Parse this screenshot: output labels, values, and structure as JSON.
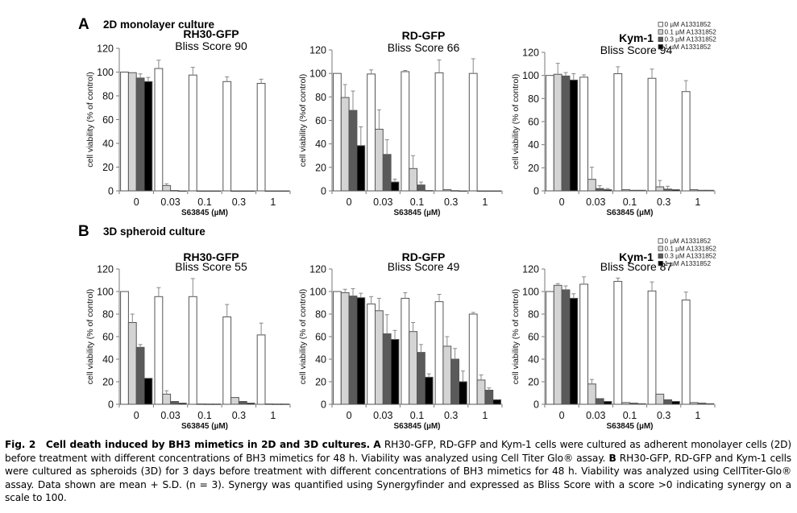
{
  "figure": {
    "panels": [
      {
        "letter": "A",
        "title": "2D monolayer culture"
      },
      {
        "letter": "B",
        "title": "3D spheroid culture"
      }
    ],
    "colors": {
      "series": [
        "#ffffff",
        "#d4d4d4",
        "#5a5a5a",
        "#000000"
      ],
      "bar_stroke": "#555555",
      "axis": "#7a7a7a",
      "error": "#888888"
    }
  },
  "legend": [
    "0 µM A1331852",
    "0.1 µM A1331852",
    "0.3 µM A1331852",
    "1 µM A1331852"
  ],
  "chart_data": [
    {
      "type": "bar",
      "panel": "A",
      "title": "RH30-GFP",
      "subtitle": "Bliss Score 90",
      "xlabel": "S63845 (µM)",
      "ylabel": "cell viability (% of control)",
      "ylim": [
        0,
        120
      ],
      "yticks": [
        0,
        20,
        40,
        60,
        80,
        100,
        120
      ],
      "categories": [
        "0",
        "0.03",
        "0.1",
        "0.3",
        "1"
      ],
      "legend": false,
      "series": [
        {
          "name": "0 µM A1331852",
          "values": [
            100,
            103,
            97.5,
            92,
            90.5
          ],
          "errors": [
            0,
            7,
            6.5,
            4,
            3.5
          ]
        },
        {
          "name": "0.1 µM A1331852",
          "values": [
            99.5,
            4.5,
            0,
            0,
            0
          ],
          "errors": [
            0.5,
            1.5,
            0,
            0,
            0
          ]
        },
        {
          "name": "0.3 µM A1331852",
          "values": [
            95,
            0.3,
            0,
            0,
            0
          ],
          "errors": [
            3.5,
            0,
            0,
            0,
            0
          ]
        },
        {
          "name": "1 µM A1331852",
          "values": [
            92,
            0,
            0,
            0,
            0
          ],
          "errors": [
            3.5,
            0,
            0,
            0,
            0
          ]
        }
      ]
    },
    {
      "type": "bar",
      "panel": "A",
      "title": "RD-GFP",
      "subtitle": "Bliss Score 66",
      "xlabel": "S63845 (µM)",
      "ylabel": "cell viability (%of control)",
      "ylim": [
        0,
        120
      ],
      "yticks": [
        0,
        20,
        40,
        60,
        80,
        100,
        120
      ],
      "categories": [
        "0",
        "0.03",
        "0.1",
        "0.3",
        "1"
      ],
      "legend": false,
      "series": [
        {
          "name": "0 µM A1331852",
          "values": [
            100,
            99.5,
            101.5,
            100.5,
            100
          ],
          "errors": [
            0,
            3.5,
            1,
            11,
            12.5
          ]
        },
        {
          "name": "0.1 µM A1331852",
          "values": [
            79.5,
            52.5,
            19,
            1,
            0
          ],
          "errors": [
            11,
            16.5,
            11,
            0.5,
            0
          ]
        },
        {
          "name": "0.3 µM A1331852",
          "values": [
            68.5,
            31,
            5,
            0.2,
            0
          ],
          "errors": [
            16.5,
            12.5,
            2.5,
            0,
            0
          ]
        },
        {
          "name": "1 µM A1331852",
          "values": [
            38.5,
            7.5,
            0.3,
            0,
            0
          ],
          "errors": [
            16,
            2.5,
            0,
            0,
            0
          ]
        }
      ]
    },
    {
      "type": "bar",
      "panel": "A",
      "title": "Kym-1",
      "subtitle": "Bliss Score 94",
      "xlabel": "S63845 (µM)",
      "ylabel": "cell viability (% of control)",
      "ylim": [
        0,
        120
      ],
      "yticks": [
        0,
        20,
        40,
        60,
        80,
        100,
        120
      ],
      "categories": [
        "0",
        "0.03",
        "0.1",
        "0.3",
        "1"
      ],
      "legend": true,
      "series": [
        {
          "name": "0 µM A1331852",
          "values": [
            100,
            98.5,
            101.5,
            97.5,
            86
          ],
          "errors": [
            0,
            2,
            6,
            8,
            9.5
          ]
        },
        {
          "name": "0.1 µM A1331852",
          "values": [
            101,
            10,
            1,
            3.5,
            1
          ],
          "errors": [
            9.5,
            10.5,
            0.5,
            5.5,
            0.3
          ]
        },
        {
          "name": "0.3 µM A1331852",
          "values": [
            99.5,
            2,
            0.5,
            1.5,
            0.5
          ],
          "errors": [
            3,
            2.5,
            0.3,
            2.5,
            0.2
          ]
        },
        {
          "name": "1 µM A1331852",
          "values": [
            96,
            1,
            0.5,
            1,
            0.5
          ],
          "errors": [
            5.5,
            1,
            0.2,
            0.5,
            0.2
          ]
        }
      ]
    },
    {
      "type": "bar",
      "panel": "B",
      "title": "RH30-GFP",
      "subtitle": "Bliss Score 55",
      "xlabel": "S63845 (µM)",
      "ylabel": "cell viability (% of control)",
      "ylim": [
        0,
        120
      ],
      "yticks": [
        0,
        20,
        40,
        60,
        80,
        100,
        120
      ],
      "categories": [
        "0",
        "0.03",
        "0.1",
        "0.3",
        "1"
      ],
      "legend": false,
      "series": [
        {
          "name": "0 µM A1331852",
          "values": [
            100,
            95.5,
            95.5,
            77.5,
            61.5
          ],
          "errors": [
            0,
            8,
            16,
            11,
            10.5
          ]
        },
        {
          "name": "0.1 µM A1331852",
          "values": [
            72.5,
            9,
            0.3,
            6,
            0.3
          ],
          "errors": [
            7.5,
            3,
            0,
            0.5,
            0
          ]
        },
        {
          "name": "0.3 µM A1331852",
          "values": [
            50.5,
            2.5,
            0.2,
            2.5,
            0.2
          ],
          "errors": [
            2.5,
            0.5,
            0,
            0.3,
            0
          ]
        },
        {
          "name": "1 µM A1331852",
          "values": [
            23,
            1,
            0.2,
            1,
            0.2
          ],
          "errors": [
            0.5,
            0.2,
            0,
            0.2,
            0
          ]
        }
      ]
    },
    {
      "type": "bar",
      "panel": "B",
      "title": "RD-GFP",
      "subtitle": "Bliss Score 49",
      "xlabel": "S63845 (µM)",
      "ylabel": "cell viability (% of control)",
      "ylim": [
        0,
        120
      ],
      "yticks": [
        0,
        20,
        40,
        60,
        80,
        100,
        120
      ],
      "categories": [
        "0",
        "0.03",
        "0.1",
        "0.3",
        "1"
      ],
      "legend": false,
      "series": [
        {
          "name": "0 µM A1331852",
          "values": [
            100,
            89,
            94,
            91,
            80
          ],
          "errors": [
            0,
            6.5,
            5,
            6.5,
            1.5
          ]
        },
        {
          "name": "0.1 µM A1331852",
          "values": [
            99,
            83,
            64.5,
            51.5,
            21.5
          ],
          "errors": [
            3,
            11,
            8,
            8.5,
            4.5
          ]
        },
        {
          "name": "0.3 µM A1331852",
          "values": [
            96,
            62.5,
            46,
            40,
            12.5
          ],
          "errors": [
            6.5,
            17,
            7,
            9.5,
            2
          ]
        },
        {
          "name": "1 µM A1331852",
          "values": [
            94.5,
            57.5,
            24,
            20,
            4
          ],
          "errors": [
            4,
            8,
            3,
            9.5,
            0.5
          ]
        }
      ]
    },
    {
      "type": "bar",
      "panel": "B",
      "title": "Kym-1",
      "subtitle": "Bliss Score 87",
      "xlabel": "S63845 (µM)",
      "ylabel": "cell viability (% of control)",
      "ylim": [
        0,
        120
      ],
      "yticks": [
        0,
        20,
        40,
        60,
        80,
        100,
        120
      ],
      "categories": [
        "0",
        "0.03",
        "0.1",
        "0.3",
        "1"
      ],
      "legend": true,
      "series": [
        {
          "name": "0 µM A1331852",
          "values": [
            100,
            106.5,
            109,
            100.5,
            92.5
          ],
          "errors": [
            0,
            6.5,
            3,
            8,
            7
          ]
        },
        {
          "name": "0.1 µM A1331852",
          "values": [
            105.5,
            18,
            1.5,
            9,
            1.5
          ],
          "errors": [
            1.5,
            4,
            0.3,
            0.5,
            0.3
          ]
        },
        {
          "name": "0.3 µM A1331852",
          "values": [
            101.5,
            5,
            1,
            4,
            1
          ],
          "errors": [
            3.5,
            0.5,
            0.2,
            0.5,
            0.2
          ]
        },
        {
          "name": "1 µM A1331852",
          "values": [
            94,
            2.5,
            0.5,
            2.5,
            0.5
          ],
          "errors": [
            4,
            0.5,
            0.2,
            0.5,
            0.2
          ]
        }
      ]
    }
  ],
  "caption": {
    "label": "Fig. 2",
    "heading": "Cell death induced by BH3 mimetics in 2D and 3D cultures.",
    "part_a_label": "A",
    "part_a_text": "RH30-GFP, RD-GFP and Kym-1 cells were cultured as adherent monolayer cells (2D) before treatment with different concentrations of BH3 mimetics for 48 h. Viability was analyzed using Cell Titer Glo® assay.",
    "part_b_label": "B",
    "part_b_text": "RH30-GFP, RD-GFP and Kym-1 cells were cultured as spheroids (3D) for 3 days before treatment with different concentrations of BH3 mimetics for 48 h. Viability was analyzed using CellTiter-Glo® assay. Data shown are mean + S.D. (n = 3). Synergy was quantified using Synergyfinder and expressed as Bliss Score with a score >0 indicating synergy on a scale to 100."
  }
}
